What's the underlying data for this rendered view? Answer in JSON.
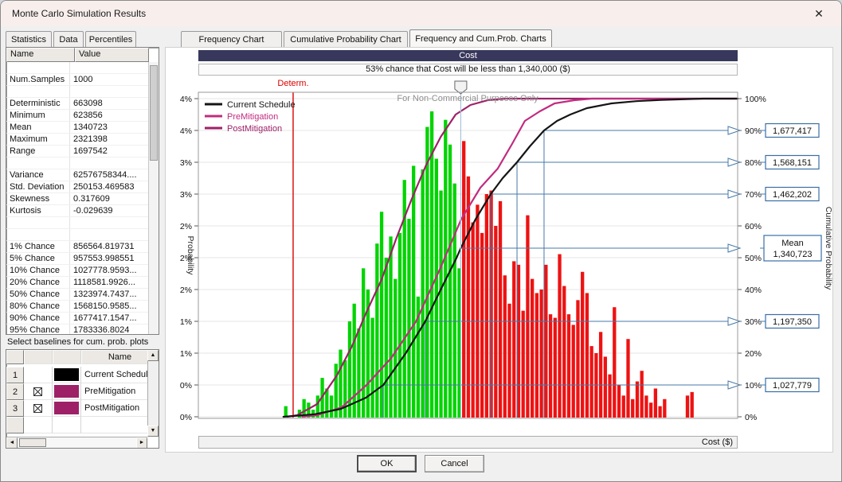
{
  "window": {
    "title": "Monte Carlo Simulation Results",
    "close_glyph": "✕"
  },
  "tabs": [
    {
      "label": "Statistics",
      "active": false
    },
    {
      "label": "Data",
      "active": false
    },
    {
      "label": "Percentiles",
      "active": false
    },
    {
      "label": "Frequency Chart",
      "active": false
    },
    {
      "label": "Cumulative Probability Chart",
      "active": false
    },
    {
      "label": "Frequency and Cum.Prob. Charts",
      "active": true
    }
  ],
  "stats_table": {
    "columns": [
      "Name",
      "Value"
    ],
    "rows": [
      [
        "",
        ""
      ],
      [
        "Num.Samples",
        "1000"
      ],
      [
        "",
        ""
      ],
      [
        "Deterministic",
        "663098"
      ],
      [
        "Minimum",
        "623856"
      ],
      [
        "Mean",
        "1340723"
      ],
      [
        "Maximum",
        "2321398"
      ],
      [
        "Range",
        "1697542"
      ],
      [
        "",
        ""
      ],
      [
        "Variance",
        "62576758344...."
      ],
      [
        "Std. Deviation",
        "250153.469583"
      ],
      [
        "Skewness",
        "0.317609"
      ],
      [
        "Kurtosis",
        "-0.029639"
      ],
      [
        "",
        ""
      ],
      [
        "",
        ""
      ],
      [
        "1% Chance",
        "856564.819731"
      ],
      [
        "5% Chance",
        "957553.998551"
      ],
      [
        "10% Chance",
        "1027778.9593..."
      ],
      [
        "20% Chance",
        "1118581.9926..."
      ],
      [
        "50% Chance",
        "1323974.7437..."
      ],
      [
        "80% Chance",
        "1568150.9585..."
      ],
      [
        "90% Chance",
        "1677417.1547..."
      ],
      [
        "95% Chance",
        "1783336.8024"
      ]
    ]
  },
  "baselines": {
    "label": "Select baselines for cum. prob. plots",
    "name_header": "Name",
    "rows": [
      {
        "num": "1",
        "checked": false,
        "color": "#000000",
        "name": "Current Schedule"
      },
      {
        "num": "2",
        "checked": true,
        "color": "#9e2168",
        "name": "PreMitigation"
      },
      {
        "num": "3",
        "checked": true,
        "color": "#9e2168",
        "name": "PostMitigation"
      }
    ]
  },
  "buttons": {
    "ok": "OK",
    "cancel": "Cancel"
  },
  "chart_data": {
    "type": "bar",
    "title": "Cost",
    "subtitle": "53% chance that Cost will be less than 1,340,000 ($)",
    "xlabel": "Cost ($)",
    "ylabel_left": "Probability",
    "ylabel_right": "Cumulative Probability",
    "watermark": "For Non-Commercial Purposes Only",
    "determ_label": "Determ.",
    "determ_value": 663098,
    "x_domain": [
      280000,
      2460000
    ],
    "hist_min": 623856,
    "bin_width": 18451,
    "split_value": 1340000,
    "prob_axis_max_pct": 4.5,
    "left_tick_labels": [
      "4%",
      "4%",
      "3%",
      "3%",
      "2%",
      "2%",
      "2%",
      "1%",
      "1%",
      "0%",
      "0%"
    ],
    "right_tick_labels": [
      "100%",
      "90%",
      "80%",
      "70%",
      "60%",
      "50%",
      "40%",
      "30%",
      "20%",
      "10%",
      "0%"
    ],
    "bar_color_below": "#00d400",
    "bar_color_above": "#ee1212",
    "connector_color": "#4779a8",
    "determ_color": "#dd0000",
    "bar_values_pct": [
      0.15,
      0,
      0,
      0.1,
      0.25,
      0.2,
      0.1,
      0.3,
      0.55,
      0.4,
      0.3,
      0.75,
      0.95,
      0.8,
      1.35,
      1.6,
      1.25,
      2.1,
      1.8,
      1.4,
      2.45,
      2.9,
      2.25,
      2.55,
      1.95,
      2.6,
      3.35,
      2.8,
      3.55,
      1.7,
      3.5,
      4.1,
      4.32,
      3.65,
      3.2,
      4.2,
      3.85,
      3.3,
      2.1,
      3.9,
      3.4,
      2.75,
      3.0,
      2.6,
      3.15,
      3.2,
      2.7,
      3.05,
      2.0,
      1.6,
      2.2,
      2.15,
      1.5,
      2.85,
      1.95,
      1.75,
      1.8,
      2.15,
      1.45,
      1.4,
      2.3,
      1.85,
      1.45,
      1.3,
      1.65,
      2.05,
      1.75,
      1.0,
      0.9,
      1.2,
      0.85,
      0.6,
      1.55,
      0.45,
      0.3,
      1.1,
      0.25,
      0.5,
      0.65,
      0.3,
      0.2,
      0.4,
      0.15,
      0.25,
      0,
      0,
      0,
      0,
      0.3,
      0.35,
      0,
      0
    ],
    "series": [
      {
        "name": "Current Schedule",
        "color": "#151515",
        "points": [
          [
            623856,
            0
          ],
          [
            750000,
            0.008
          ],
          [
            856565,
            0.025
          ],
          [
            957554,
            0.06
          ],
          [
            1027779,
            0.1
          ],
          [
            1118582,
            0.2
          ],
          [
            1197350,
            0.3
          ],
          [
            1260000,
            0.4
          ],
          [
            1323975,
            0.5
          ],
          [
            1340723,
            0.53
          ],
          [
            1400000,
            0.62
          ],
          [
            1462202,
            0.7
          ],
          [
            1510000,
            0.75
          ],
          [
            1568151,
            0.8
          ],
          [
            1620000,
            0.85
          ],
          [
            1677417,
            0.9
          ],
          [
            1730000,
            0.93
          ],
          [
            1783337,
            0.95
          ],
          [
            1850000,
            0.97
          ],
          [
            1950000,
            0.985
          ],
          [
            2050000,
            0.992
          ],
          [
            2150000,
            0.996
          ],
          [
            2321398,
            1.0
          ],
          [
            2460000,
            1.0
          ]
        ]
      },
      {
        "name": "PreMitigation",
        "color": "#c12b80",
        "points": [
          [
            700000,
            0
          ],
          [
            760000,
            0.005
          ],
          [
            860000,
            0.03
          ],
          [
            960000,
            0.1
          ],
          [
            1060000,
            0.185
          ],
          [
            1160000,
            0.3
          ],
          [
            1260000,
            0.47
          ],
          [
            1342000,
            0.62
          ],
          [
            1420000,
            0.72
          ],
          [
            1490000,
            0.78
          ],
          [
            1550000,
            0.86
          ],
          [
            1600000,
            0.93
          ],
          [
            1660000,
            0.96
          ],
          [
            1720000,
            0.985
          ],
          [
            1800000,
            0.995
          ],
          [
            1870000,
            1.0
          ],
          [
            2460000,
            1.0
          ]
        ]
      },
      {
        "name": "PostMitigation",
        "color": "#9e2168",
        "points": [
          [
            640000,
            0
          ],
          [
            680000,
            0.005
          ],
          [
            760000,
            0.04
          ],
          [
            840000,
            0.13
          ],
          [
            900000,
            0.22
          ],
          [
            960000,
            0.33
          ],
          [
            1020000,
            0.43
          ],
          [
            1080000,
            0.56
          ],
          [
            1140000,
            0.68
          ],
          [
            1200000,
            0.79
          ],
          [
            1260000,
            0.88
          ],
          [
            1320000,
            0.95
          ],
          [
            1380000,
            0.98
          ],
          [
            1450000,
            0.995
          ],
          [
            1520000,
            1.0
          ],
          [
            2460000,
            1.0
          ]
        ]
      }
    ],
    "percentile_callouts": [
      {
        "pct": 90,
        "value": 1677417,
        "label": "1,677,417"
      },
      {
        "pct": 80,
        "value": 1568151,
        "label": "1,568,151"
      },
      {
        "pct": 70,
        "value": 1462202,
        "label": "1,462,202"
      },
      {
        "pct": 53,
        "value": 1340723,
        "label": "1,340,723",
        "title": "Mean"
      },
      {
        "pct": 30,
        "value": 1197350,
        "label": "1,197,350"
      },
      {
        "pct": 10,
        "value": 1027779,
        "label": "1,027,779"
      }
    ]
  }
}
